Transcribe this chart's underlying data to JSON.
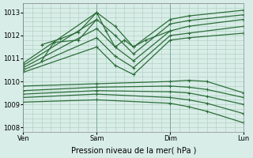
{
  "xlabel": "Pression niveau de la mer( hPa )",
  "background_color": "#d8ede8",
  "grid_color": "#aaccbb",
  "line_color": "#2d6e3a",
  "marker": "+",
  "markersize": 3,
  "linewidth": 0.9,
  "ylim": [
    1007.8,
    1013.4
  ],
  "yticks": [
    1008,
    1009,
    1010,
    1011,
    1012,
    1013
  ],
  "xlim": [
    0,
    72
  ],
  "xlabel_fontsize": 7,
  "tick_fontsize": 6,
  "series": [
    {
      "x": [
        0,
        24,
        30,
        36,
        48,
        54,
        72
      ],
      "y": [
        1010.8,
        1013.0,
        1012.4,
        1011.5,
        1012.7,
        1012.85,
        1013.1
      ]
    },
    {
      "x": [
        0,
        24,
        30,
        36,
        48,
        54,
        72
      ],
      "y": [
        1010.7,
        1012.7,
        1012.0,
        1011.2,
        1012.5,
        1012.65,
        1012.9
      ]
    },
    {
      "x": [
        0,
        24,
        30,
        36,
        48,
        54,
        72
      ],
      "y": [
        1010.6,
        1012.3,
        1011.5,
        1010.9,
        1012.2,
        1012.4,
        1012.7
      ]
    },
    {
      "x": [
        0,
        24,
        30,
        36,
        48,
        54,
        72
      ],
      "y": [
        1010.5,
        1011.9,
        1011.1,
        1010.6,
        1012.0,
        1012.1,
        1012.4
      ]
    },
    {
      "x": [
        0,
        24,
        30,
        36,
        48,
        54,
        72
      ],
      "y": [
        1010.4,
        1011.5,
        1010.7,
        1010.3,
        1011.8,
        1011.9,
        1012.1
      ]
    },
    {
      "x": [
        0,
        24,
        48,
        54,
        60,
        72
      ],
      "y": [
        1009.8,
        1009.9,
        1010.0,
        1010.05,
        1010.0,
        1009.5
      ]
    },
    {
      "x": [
        0,
        24,
        48,
        54,
        60,
        72
      ],
      "y": [
        1009.6,
        1009.75,
        1009.8,
        1009.75,
        1009.65,
        1009.3
      ]
    },
    {
      "x": [
        0,
        24,
        48,
        54,
        60,
        72
      ],
      "y": [
        1009.45,
        1009.6,
        1009.55,
        1009.5,
        1009.35,
        1009.0
      ]
    },
    {
      "x": [
        0,
        24,
        48,
        54,
        60,
        72
      ],
      "y": [
        1009.3,
        1009.45,
        1009.3,
        1009.2,
        1009.05,
        1008.6
      ]
    },
    {
      "x": [
        0,
        24,
        48,
        54,
        60,
        72
      ],
      "y": [
        1009.1,
        1009.2,
        1009.05,
        1008.9,
        1008.7,
        1008.2
      ]
    }
  ],
  "spike_series": [
    {
      "x": [
        6,
        12,
        18,
        24
      ],
      "y": [
        1011.6,
        1011.85,
        1012.15,
        1013.0
      ]
    },
    {
      "x": [
        6,
        10,
        18,
        24
      ],
      "y": [
        1010.9,
        1011.7,
        1011.8,
        1012.7
      ]
    },
    {
      "x": [
        24,
        27,
        30,
        33
      ],
      "y": [
        1013.0,
        1012.2,
        1011.5,
        1011.8
      ]
    },
    {
      "x": [
        33,
        36,
        40,
        48
      ],
      "y": [
        1011.8,
        1011.5,
        1011.8,
        1012.2
      ]
    }
  ]
}
